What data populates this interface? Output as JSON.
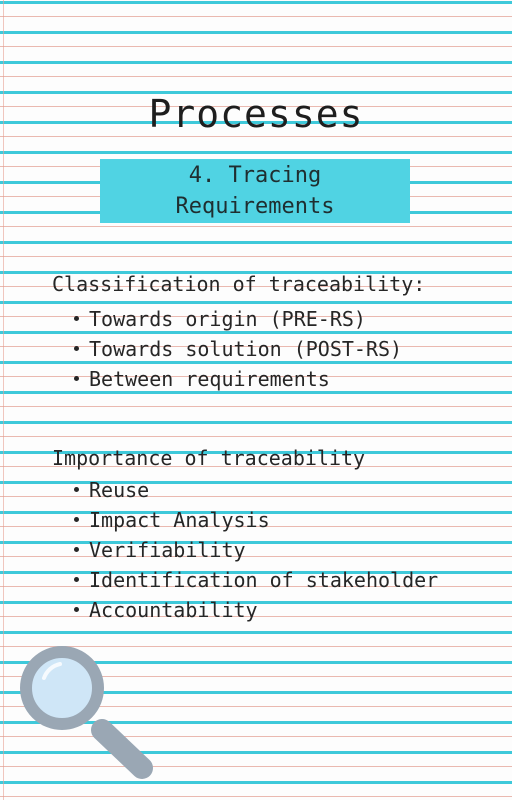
{
  "title": "Processes",
  "banner": {
    "text": "4. Tracing\nRequirements"
  },
  "sections": [
    {
      "heading": "Classification of traceability:",
      "items": [
        "Towards origin (PRE-RS)",
        "Towards solution (POST-RS)",
        "Between requirements"
      ]
    },
    {
      "heading": "Importance of traceability",
      "items": [
        "Reuse",
        "Impact Analysis",
        "Verifiability",
        "Identification of stakeholder",
        "Accountability"
      ]
    }
  ],
  "colors": {
    "line_blue": "#3ec9da",
    "banner_cyan": "#50d3e3",
    "margin_red": "#e19b8e",
    "magnifier_glass": "#cfe6f7",
    "magnifier_frame": "#9aa7b4"
  },
  "decor": {
    "icon": "magnifier-icon"
  }
}
